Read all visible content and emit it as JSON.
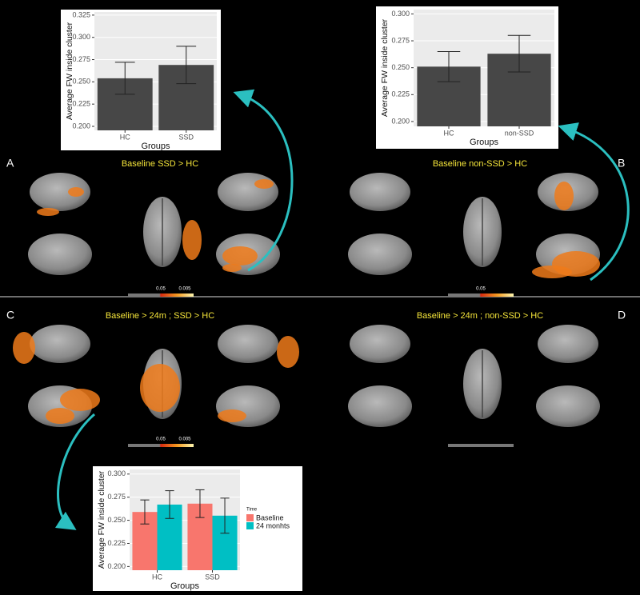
{
  "chart_data": [
    {
      "type": "bar",
      "y_label": "Average FW inside cluster",
      "x_label": "Groups",
      "categories": [
        "HC",
        "SSD"
      ],
      "values": [
        0.254,
        0.269
      ],
      "errors": [
        0.018,
        0.021
      ],
      "color": "#474747",
      "ylim": [
        0.1955,
        0.3285
      ],
      "yticks": [
        {
          "value": 0.2,
          "label": "0.200"
        },
        0.225,
        {
          "value": 0.25,
          "label": "0.250"
        },
        0.275,
        {
          "value": 0.3,
          "label": "0.300"
        },
        0.325
      ],
      "grid": true
    },
    {
      "type": "bar",
      "y_label": "Average FW inside cluster",
      "x_label": "Groups",
      "categories": [
        "HC",
        "non-SSD"
      ],
      "values": [
        0.251,
        0.263
      ],
      "errors": [
        0.014,
        0.017
      ],
      "color": "#474747",
      "ylim": [
        0.1955,
        0.304
      ],
      "yticks": [
        {
          "value": 0.2,
          "label": "0.200"
        },
        0.225,
        {
          "value": 0.25,
          "label": "0.250"
        },
        0.275,
        {
          "value": 0.3,
          "label": "0.300"
        }
      ],
      "grid": true
    },
    {
      "type": "bar",
      "y_label": "Average FW inside cluster",
      "x_label": "Groups",
      "legend_title": "Time",
      "categories": [
        "HC",
        "SSD"
      ],
      "series": [
        {
          "name": "Baseline",
          "color": "#f8766d",
          "values": [
            0.259,
            0.268
          ],
          "errors": [
            0.013,
            0.015
          ]
        },
        {
          "name": "24 monhts",
          "color": "#00bfc4",
          "values": [
            0.267,
            0.255
          ],
          "errors": [
            0.015,
            0.019
          ]
        }
      ],
      "ylim": [
        0.196,
        0.305
      ],
      "yticks": [
        {
          "value": 0.2,
          "label": "0.200"
        },
        0.225,
        {
          "value": 0.25,
          "label": "0.250"
        },
        0.275,
        {
          "value": 0.3,
          "label": "0.300"
        }
      ],
      "grid": true,
      "legend": "right"
    }
  ],
  "panels": [
    {
      "label": "A",
      "title": "Baseline  SSD > HC",
      "colorbar": [
        "0.05",
        "0.005"
      ]
    },
    {
      "label": "B",
      "title": "Baseline  non-SSD > HC",
      "colorbar": [
        "0.05"
      ]
    },
    {
      "label": "C",
      "title": "Baseline > 24m ; SSD > HC",
      "colorbar": [
        "0.05",
        "0.005"
      ]
    },
    {
      "label": "D",
      "title": "Baseline > 24m ; non-SSD > HC",
      "colorbar": []
    }
  ]
}
